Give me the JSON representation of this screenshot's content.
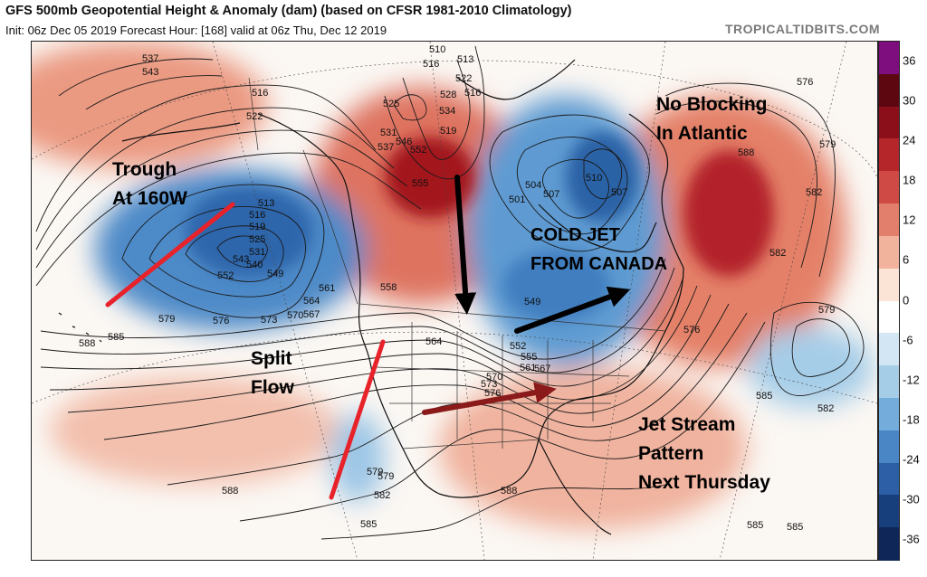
{
  "header": {
    "title": "GFS 500mb Geopotential Height & Anomaly (dam) (based on CFSR 1981-2010 Climatology)",
    "subtitle": "Init: 06z Dec 05 2019   Forecast Hour: [168]   valid at 06z Thu, Dec 12 2019",
    "credit": "TROPICALTIDBITS.COM"
  },
  "annotations": {
    "trough": [
      "Trough",
      "At 160W"
    ],
    "no_blocking": [
      "No Blocking",
      "In Atlantic"
    ],
    "cold_jet": [
      "COLD JET",
      "FROM CANADA"
    ],
    "split_flow": [
      "Split",
      "Flow"
    ],
    "jet_stream": [
      "Jet Stream",
      "Pattern",
      "Next Thursday"
    ]
  },
  "contour_labels": [
    "537",
    "543",
    "516",
    "522",
    "510",
    "513",
    "516",
    "522",
    "528",
    "534",
    "519",
    "525",
    "531",
    "537",
    "546",
    "552",
    "555",
    "507",
    "510",
    "501",
    "504",
    "507",
    "513",
    "516",
    "519",
    "525",
    "531",
    "540",
    "543",
    "549",
    "552",
    "558",
    "561",
    "564",
    "567",
    "570",
    "573",
    "576",
    "579",
    "585",
    "588",
    "564",
    "570",
    "573",
    "576",
    "585",
    "549",
    "552",
    "555",
    "561",
    "567",
    "576",
    "579",
    "582",
    "588",
    "582",
    "579",
    "576",
    "585",
    "582",
    "579",
    "582",
    "588",
    "585",
    "588",
    "585",
    "516",
    "579"
  ],
  "colorbar": {
    "labels": [
      "36",
      "30",
      "24",
      "18",
      "12",
      "6",
      "0",
      "-6",
      "-12",
      "-18",
      "-24",
      "-30",
      "-36"
    ],
    "colors": [
      "#7e0d7e",
      "#5d0811",
      "#8b0f1a",
      "#b5262b",
      "#cf4a45",
      "#e27f6c",
      "#f1b39c",
      "#fbe3d6",
      "#ffffff",
      "#d3e6f3",
      "#a6cde8",
      "#74addb",
      "#4a86c6",
      "#2c5fa6",
      "#173f7c",
      "#0f2658"
    ],
    "colors_note": ""
  },
  "map_colors": {
    "ocean_bg": "#fbf7f3",
    "land_line": "#111111",
    "border_line": "#333333",
    "contour_line": "#1a1a1a",
    "red_line": "#e8222a",
    "dark_red_line": "#8b1a1a",
    "black_arrow": "#000000"
  }
}
